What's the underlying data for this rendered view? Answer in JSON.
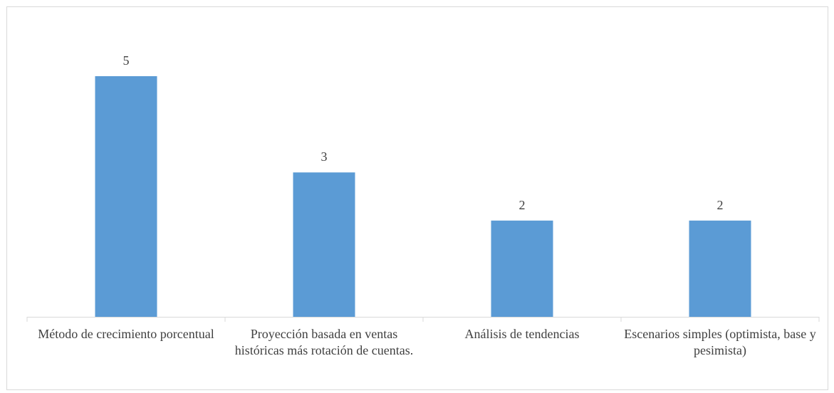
{
  "chart_data": {
    "type": "bar",
    "categories": [
      "Método de crecimiento porcentual",
      "Proyección basada en ventas históricas más rotación de cuentas.",
      "Análisis de tendencias",
      "Escenarios simples (optimista, base y pesimista)"
    ],
    "values": [
      5,
      3,
      2,
      2
    ],
    "color": "#5b9bd5"
  }
}
